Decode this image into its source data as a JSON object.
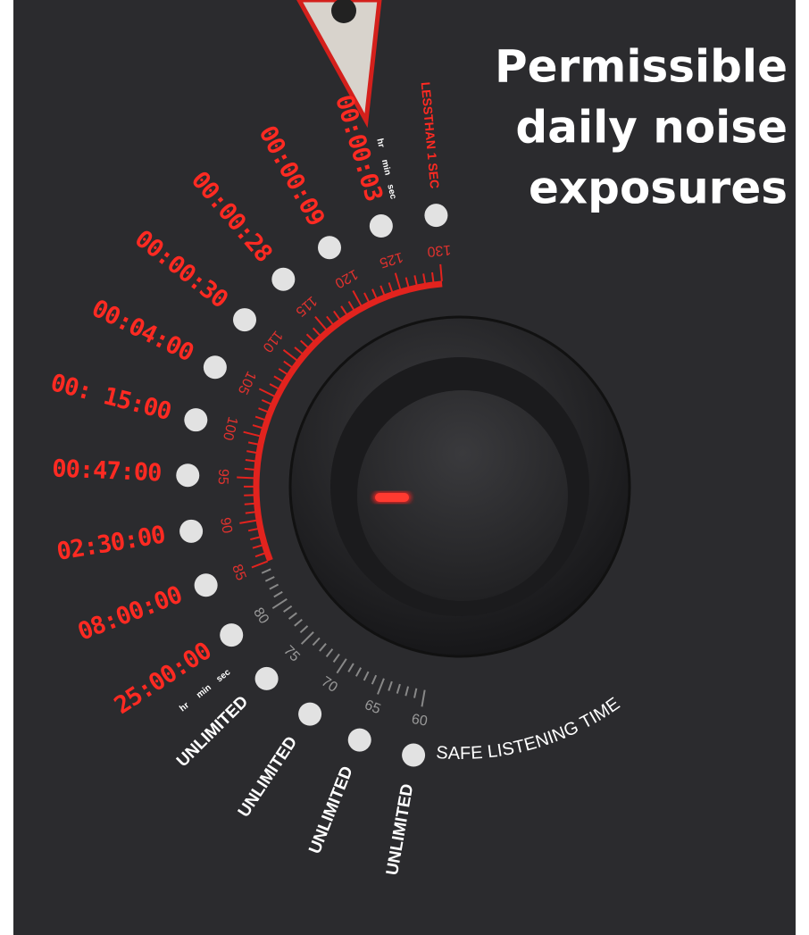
{
  "title": [
    "Permissible",
    "daily noise",
    "exposures"
  ],
  "units_top": [
    "hr",
    "min",
    "sec"
  ],
  "units_bottom": [
    "hr",
    "min",
    "sec"
  ],
  "scale": [
    {
      "db": 130,
      "exposure": "LESSTHAN 1 SEC"
    },
    {
      "db": 125,
      "exposure": "00:00:03"
    },
    {
      "db": 120,
      "exposure": "00:00:09"
    },
    {
      "db": 115,
      "exposure": "00:00:28"
    },
    {
      "db": 110,
      "exposure": "00:00:30"
    },
    {
      "db": 105,
      "exposure": "00:04:00"
    },
    {
      "db": 100,
      "exposure": "00: 15:00"
    },
    {
      "db": 95,
      "exposure": "00:47:00"
    },
    {
      "db": 90,
      "exposure": "02:30:00"
    },
    {
      "db": 85,
      "exposure": "08:00:00"
    },
    {
      "db": 80,
      "exposure": "25:00:00"
    },
    {
      "db": 75,
      "exposure": "UNLIMITED"
    },
    {
      "db": 70,
      "exposure": "UNLIMITED"
    },
    {
      "db": 65,
      "exposure": "UNLIMITED"
    },
    {
      "db": 60,
      "exposure": "UNLIMITED"
    }
  ],
  "safe_label": "SAFE LISTENING TIME"
}
